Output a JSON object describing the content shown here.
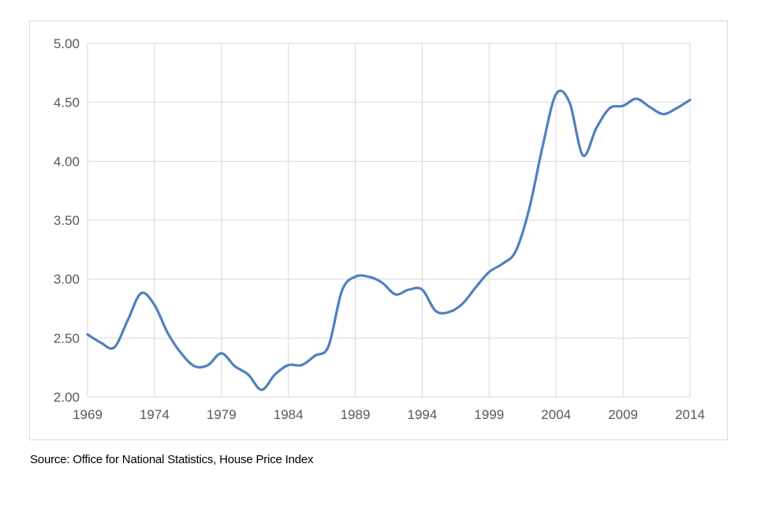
{
  "chart_data": {
    "type": "line",
    "title": "",
    "xlabel": "",
    "ylabel": "",
    "xlim": [
      1969,
      2014
    ],
    "ylim": [
      2.0,
      5.0
    ],
    "x_ticks": [
      "1969",
      "1974",
      "1979",
      "1984",
      "1989",
      "1994",
      "1999",
      "2004",
      "2009",
      "2014"
    ],
    "y_ticks": [
      "2.00",
      "2.50",
      "3.00",
      "3.50",
      "4.00",
      "4.50",
      "5.00"
    ],
    "grid": true,
    "legend": "none",
    "series": [
      {
        "color": "#4f81bd",
        "x": [
          1969,
          1970,
          1971,
          1972,
          1973,
          1974,
          1975,
          1976,
          1977,
          1978,
          1979,
          1980,
          1981,
          1982,
          1983,
          1984,
          1985,
          1986,
          1987,
          1988,
          1989,
          1990,
          1991,
          1992,
          1993,
          1994,
          1995,
          1996,
          1997,
          1998,
          1999,
          2000,
          2001,
          2002,
          2003,
          2004,
          2005,
          2006,
          2007,
          2008,
          2009,
          2010,
          2011,
          2012,
          2013,
          2014
        ],
        "values": [
          2.53,
          2.46,
          2.42,
          2.65,
          2.88,
          2.78,
          2.54,
          2.37,
          2.26,
          2.27,
          2.37,
          2.26,
          2.19,
          2.06,
          2.19,
          2.27,
          2.27,
          2.35,
          2.43,
          2.9,
          3.02,
          3.02,
          2.97,
          2.87,
          2.91,
          2.91,
          2.73,
          2.72,
          2.79,
          2.93,
          3.06,
          3.13,
          3.24,
          3.6,
          4.13,
          4.57,
          4.5,
          4.05,
          4.28,
          4.45,
          4.47,
          4.53,
          4.46,
          4.4,
          4.45,
          4.52
        ]
      }
    ]
  },
  "source_note": "Source: Office for National Statistics, House Price Index"
}
